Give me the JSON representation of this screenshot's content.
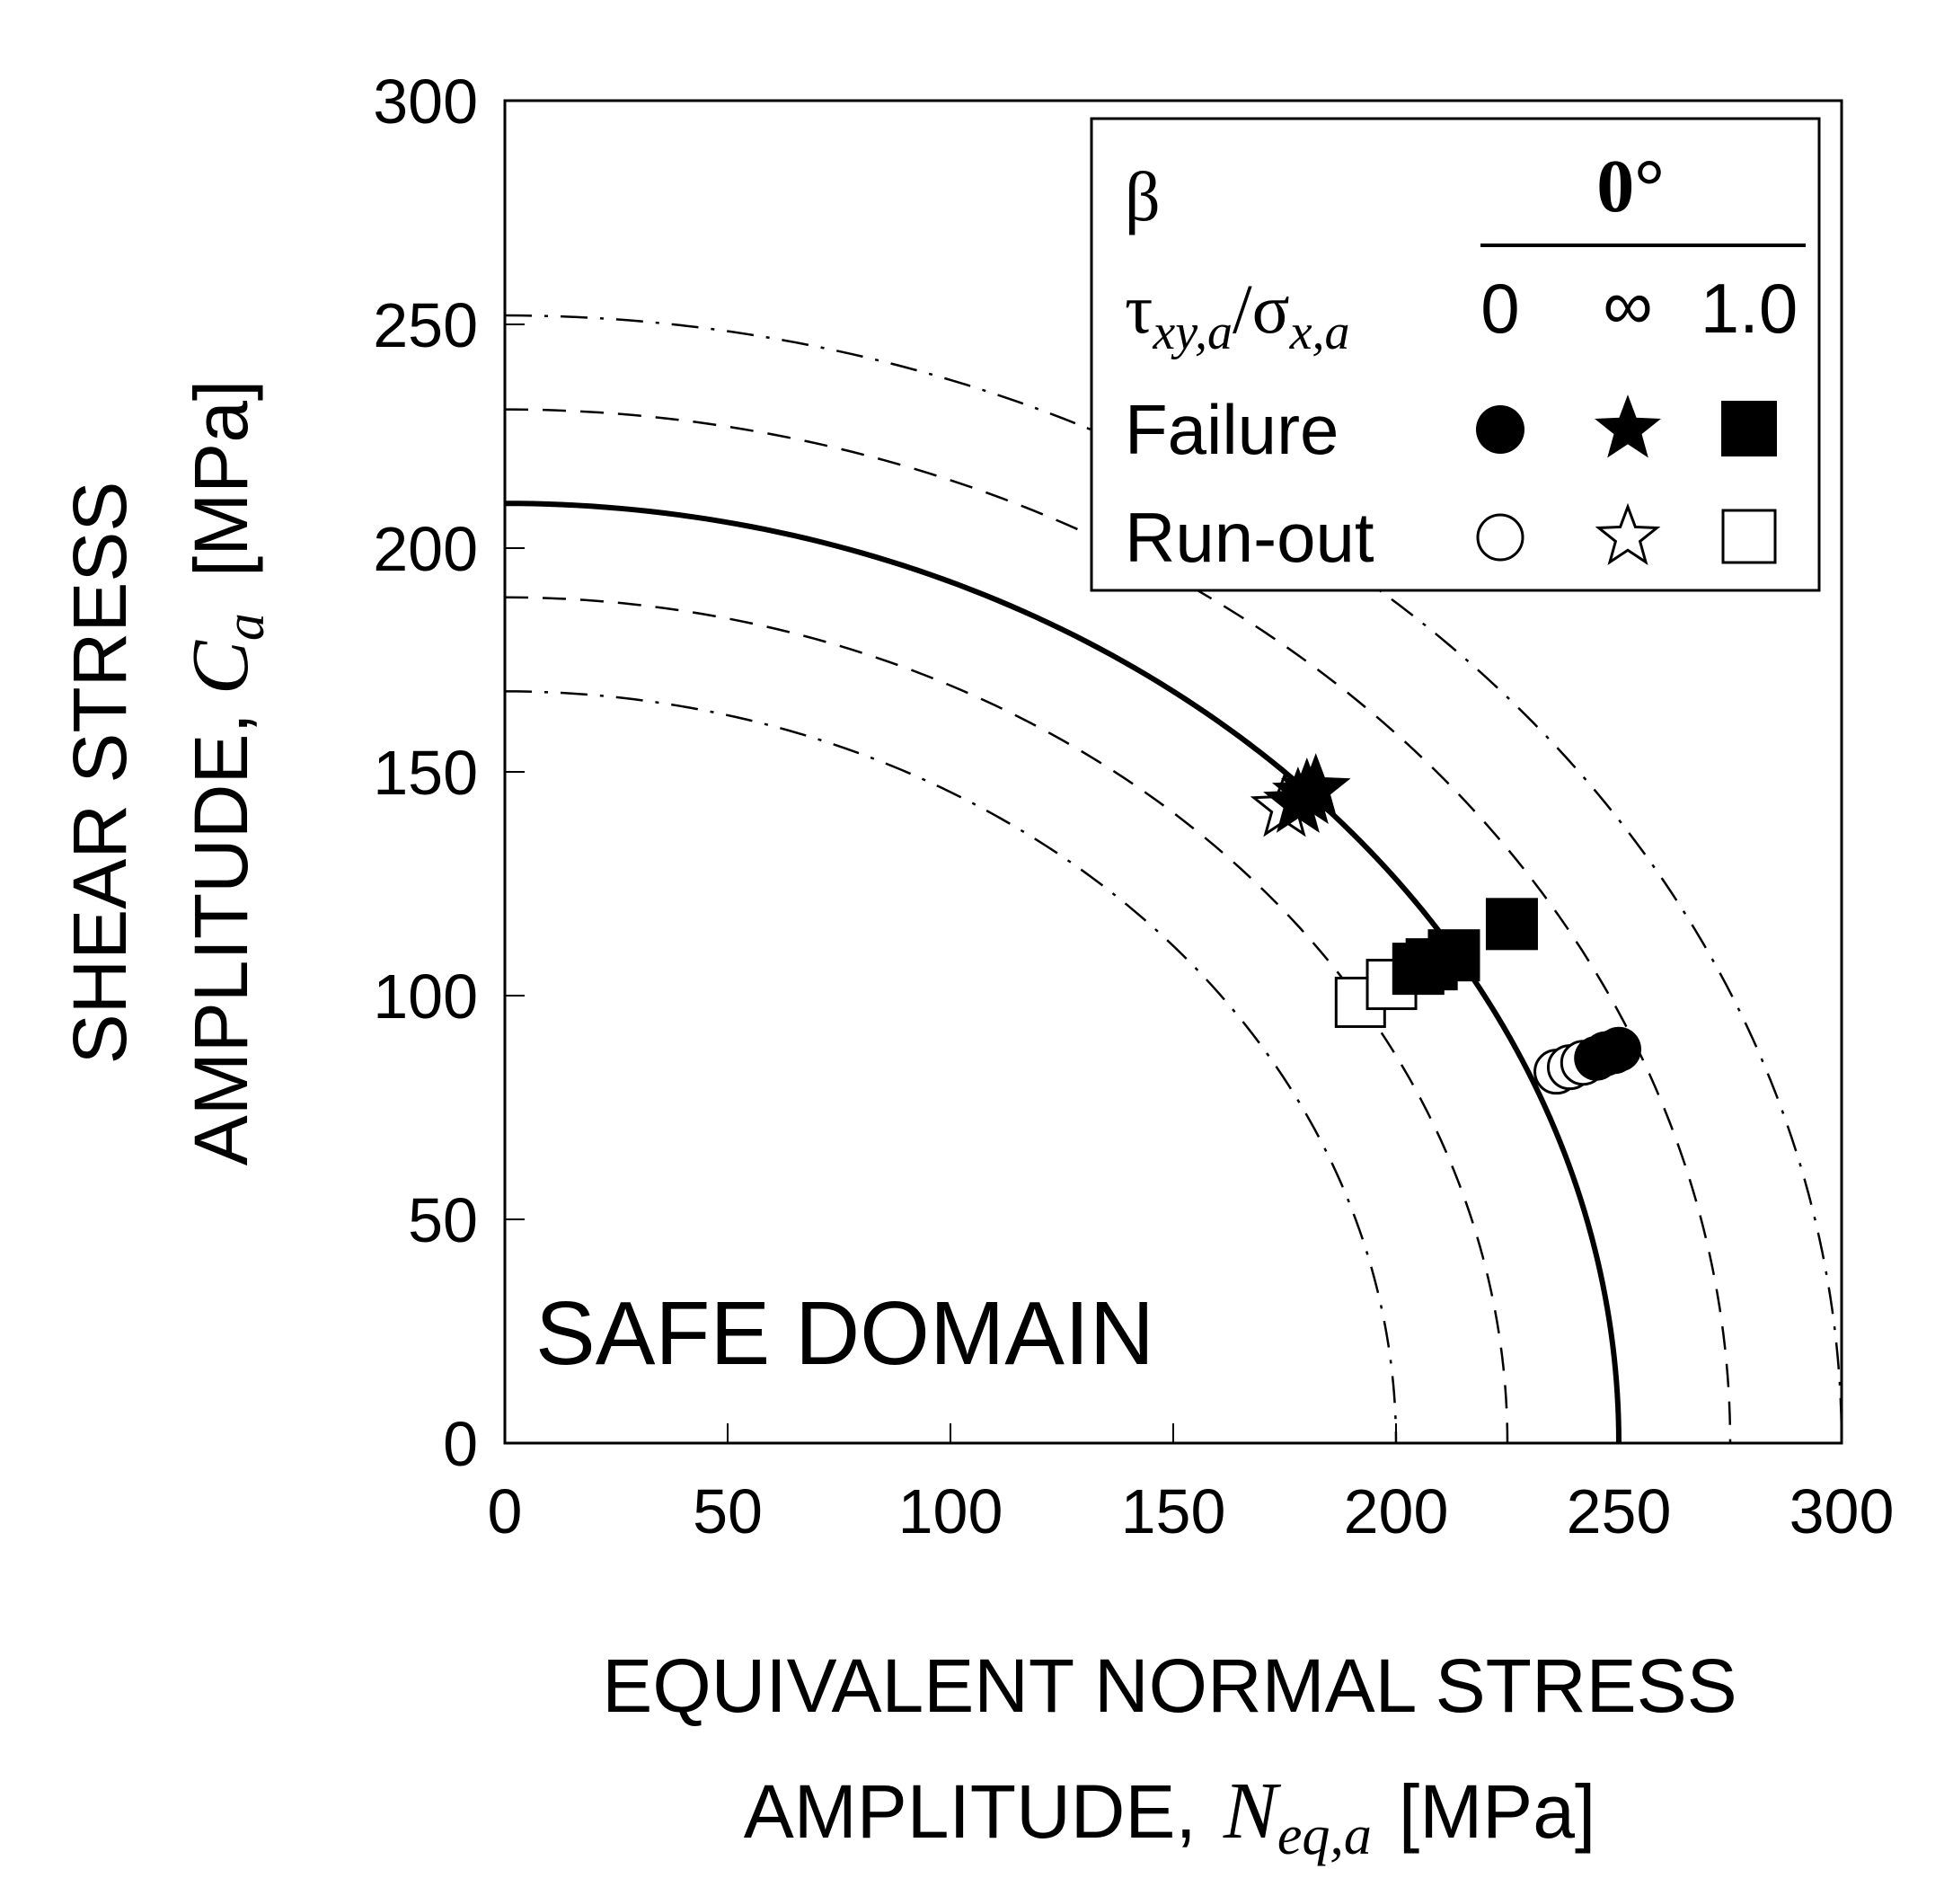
{
  "chart_data": {
    "type": "scatter",
    "xlabel": {
      "line1": "EQUIVALENT  NORMAL STRESS",
      "line2_prefix": "AMPLITUDE,",
      "line2_symbol": "N",
      "line2_subscript": "eq,a",
      "line2_unit": "[MPa]"
    },
    "ylabel": {
      "line1": "SHEAR STRESS",
      "line2_prefix": "AMPLITUDE,",
      "line2_symbol": "C",
      "line2_subscript": "a",
      "line2_unit": "[MPa]"
    },
    "xlim": [
      0,
      300
    ],
    "ylim": [
      0,
      300
    ],
    "xticks": [
      "0",
      "50",
      "100",
      "150",
      "200",
      "250",
      "300"
    ],
    "yticks": [
      "0",
      "50",
      "100",
      "150",
      "200",
      "250",
      "300"
    ],
    "grid": false,
    "annotation": "SAFE DOMAIN",
    "legend": {
      "position": "top-right",
      "beta_label": "β",
      "beta_value": "0°",
      "ratio_tau": "τ",
      "ratio_tau_sub": "xy,a",
      "ratio_slash": "/σ",
      "ratio_sigma_sub": "x,a",
      "ratio_values": [
        "0",
        "∞",
        "1.0"
      ],
      "failure_label": "Failure",
      "runout_label": "Run-out"
    },
    "curves": [
      {
        "style": "solid",
        "x_intercept": 250,
        "y_intercept": 210
      },
      {
        "style": "dashed",
        "x_intercept": 275,
        "y_intercept": 231
      },
      {
        "style": "dashed",
        "x_intercept": 225,
        "y_intercept": 189
      },
      {
        "style": "dashdot",
        "x_intercept": 300,
        "y_intercept": 252
      },
      {
        "style": "dashdot",
        "x_intercept": 200,
        "y_intercept": 168
      }
    ],
    "series": [
      {
        "ratio": "0",
        "state": "failure",
        "marker": "circle-filled",
        "points": [
          [
            245,
            86
          ],
          [
            247,
            87
          ],
          [
            249,
            87.5
          ],
          [
            250,
            88
          ]
        ]
      },
      {
        "ratio": "0",
        "state": "runout",
        "marker": "circle-open",
        "points": [
          [
            236,
            83
          ],
          [
            239,
            84
          ],
          [
            242,
            85
          ]
        ]
      },
      {
        "ratio": "∞",
        "state": "failure",
        "marker": "star-filled",
        "points": [
          [
            178,
            143
          ],
          [
            180,
            145
          ],
          [
            182,
            146
          ]
        ]
      },
      {
        "ratio": "∞",
        "state": "runout",
        "marker": "star-open",
        "points": [
          [
            175,
            142
          ]
        ]
      },
      {
        "ratio": "1.0",
        "state": "failure",
        "marker": "square-filled",
        "points": [
          [
            205,
            106
          ],
          [
            208,
            107
          ],
          [
            213,
            109
          ],
          [
            226,
            116
          ]
        ]
      },
      {
        "ratio": "1.0",
        "state": "runout",
        "marker": "square-open",
        "points": [
          [
            192,
            98.5
          ],
          [
            199,
            102.5
          ]
        ]
      }
    ]
  }
}
